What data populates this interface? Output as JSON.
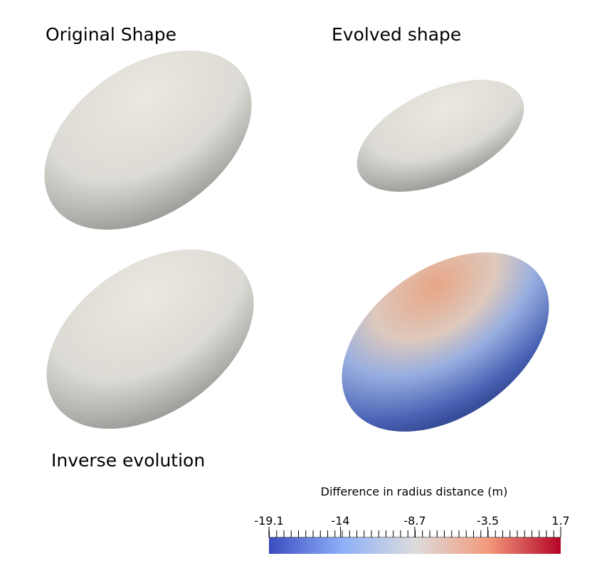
{
  "panels": [
    {
      "label": "Original Shape"
    },
    {
      "label": "Evolved shape"
    },
    {
      "label": "Inverse evolution"
    }
  ],
  "colorbar": {
    "title": "Difference in radius distance (m)",
    "range": [
      -19.1,
      1.7
    ],
    "ticks": [
      -19.1,
      -14,
      -8.7,
      -3.5,
      1.7
    ]
  }
}
